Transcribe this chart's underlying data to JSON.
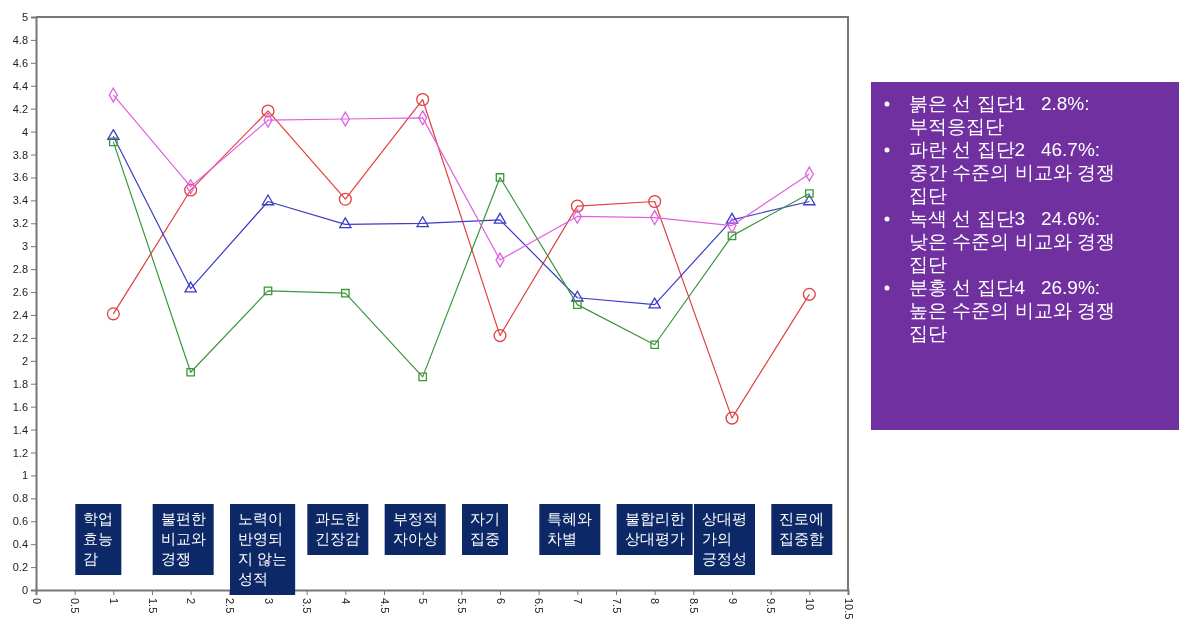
{
  "chart_data": {
    "type": "line",
    "x": [
      1,
      2,
      3,
      4,
      5,
      6,
      7,
      8,
      9,
      10
    ],
    "xlim": [
      0,
      10.5
    ],
    "xticks": [
      0,
      0.5,
      1,
      1.5,
      2,
      2.5,
      3,
      3.5,
      4,
      4.5,
      5,
      5.5,
      6,
      6.5,
      7,
      7.5,
      8,
      8.5,
      9,
      9.5,
      10,
      10.5
    ],
    "ylim": [
      0,
      5
    ],
    "yticks": [
      0,
      0.2,
      0.4,
      0.6,
      0.8,
      1,
      1.2,
      1.4,
      1.6,
      1.8,
      2,
      2.2,
      2.4,
      2.6,
      2.8,
      3,
      3.2,
      3.4,
      3.6,
      3.8,
      4,
      4.2,
      4.4,
      4.6,
      4.8,
      5
    ],
    "grid": false,
    "line_style": "solid",
    "series": [
      {
        "color": "#e04040",
        "marker": "circle",
        "values": [
          2.41,
          3.49,
          4.18,
          3.41,
          4.28,
          2.22,
          3.35,
          3.39,
          1.5,
          2.58
        ]
      },
      {
        "color": "#3c3cc8",
        "marker": "triangle",
        "values": [
          3.96,
          2.63,
          3.39,
          3.19,
          3.2,
          3.23,
          2.55,
          2.49,
          3.23,
          3.39
        ]
      },
      {
        "color": "#3c963c",
        "marker": "square",
        "values": [
          3.91,
          1.9,
          2.61,
          2.59,
          1.86,
          3.6,
          2.49,
          2.14,
          3.09,
          3.46
        ]
      },
      {
        "color": "#e060e0",
        "marker": "diamond",
        "values": [
          4.32,
          3.52,
          4.1,
          4.11,
          4.12,
          2.88,
          3.26,
          3.25,
          3.18,
          3.63
        ]
      }
    ],
    "annotations": [
      "학업\n효능\n감",
      "불편한\n비교와\n경쟁",
      "노력이\n반영되\n지 않는\n성적",
      "과도한\n긴장감",
      "부정적\n자아상",
      "자기\n집중",
      "특혜와\n차별",
      "불합리한\n상대평가",
      "상대평\n가의\n긍정성",
      "진로에\n집중함",
      "붉은 선 집단1   2.8%:\n부적응집단",
      "파란 선 집단2   46.7%:\n중간 수준의 비교와 경쟁\n집단",
      "녹색 선 집단3   24.6%:\n낮은 수준의 비교와 경쟁\n집단",
      "분홍 선 집단4   26.9%:\n높은 수준의 비교와 경쟁\n집단"
    ]
  }
}
